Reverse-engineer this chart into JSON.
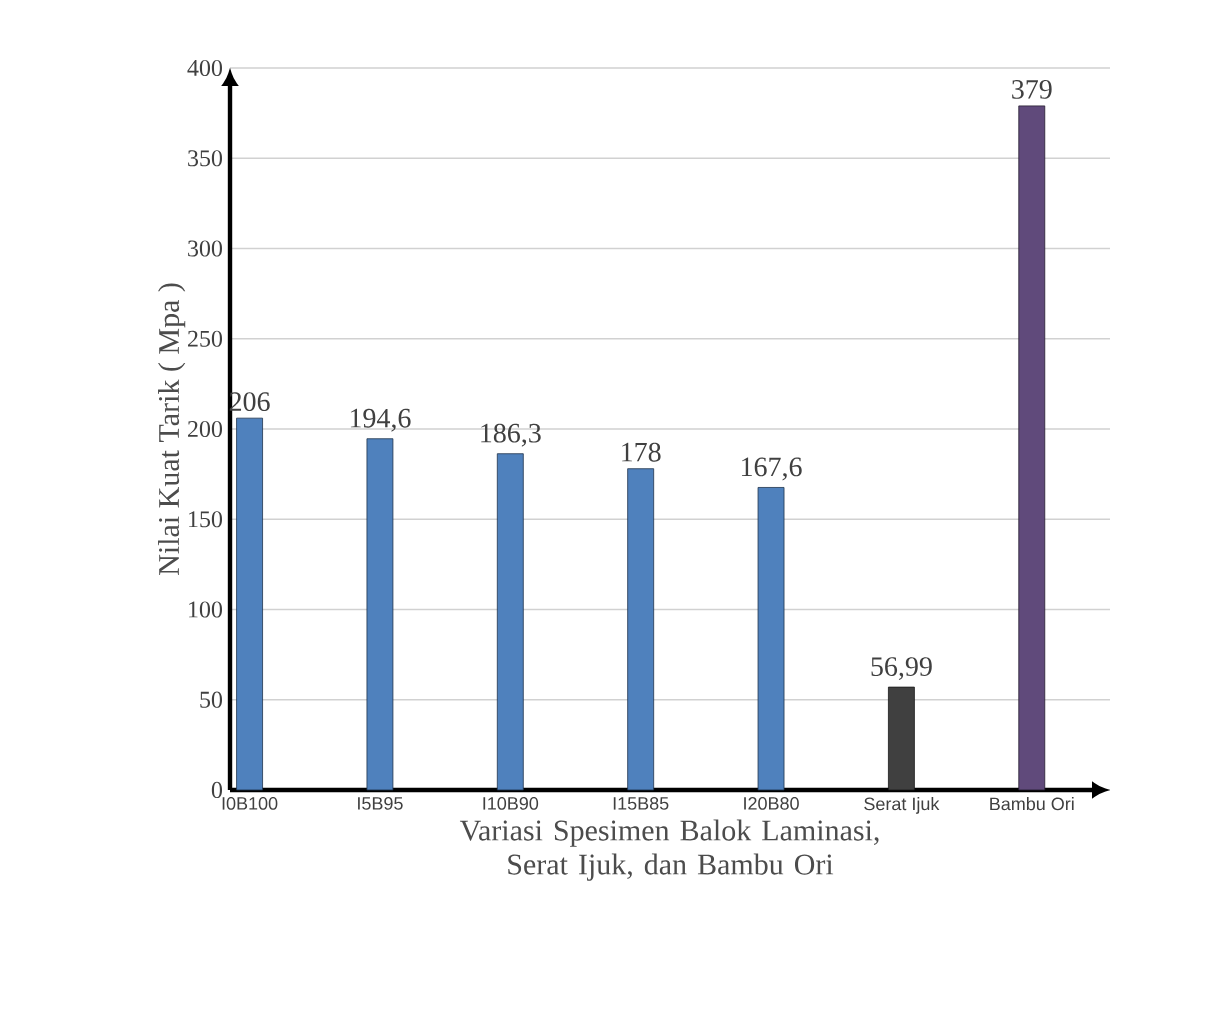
{
  "chart_data": {
    "type": "bar",
    "xlabel": "Variasi Spesimen Balok Laminasi, Serat Ijuk, dan Bambu Ori",
    "ylabel": "Nilai Kuat Tarik ( Mpa )",
    "categories": [
      "I0B100",
      "I5B95",
      "I10B90",
      "I15B85",
      "I20B80",
      "Serat Ijuk",
      "Bambu Ori"
    ],
    "values": [
      206,
      194.6,
      186.3,
      178,
      167.6,
      56.99,
      379
    ],
    "value_labels": [
      "206",
      "194,6",
      "186,3",
      "178",
      "167,6",
      "56,99",
      "379"
    ],
    "colors": [
      "#4f81bd",
      "#4f81bd",
      "#4f81bd",
      "#4f81bd",
      "#4f81bd",
      "#404040",
      "#604a7b"
    ],
    "ylim": [
      0,
      400
    ],
    "yticks": [
      0,
      50,
      100,
      150,
      200,
      250,
      300,
      350,
      400
    ],
    "grid": "y"
  }
}
